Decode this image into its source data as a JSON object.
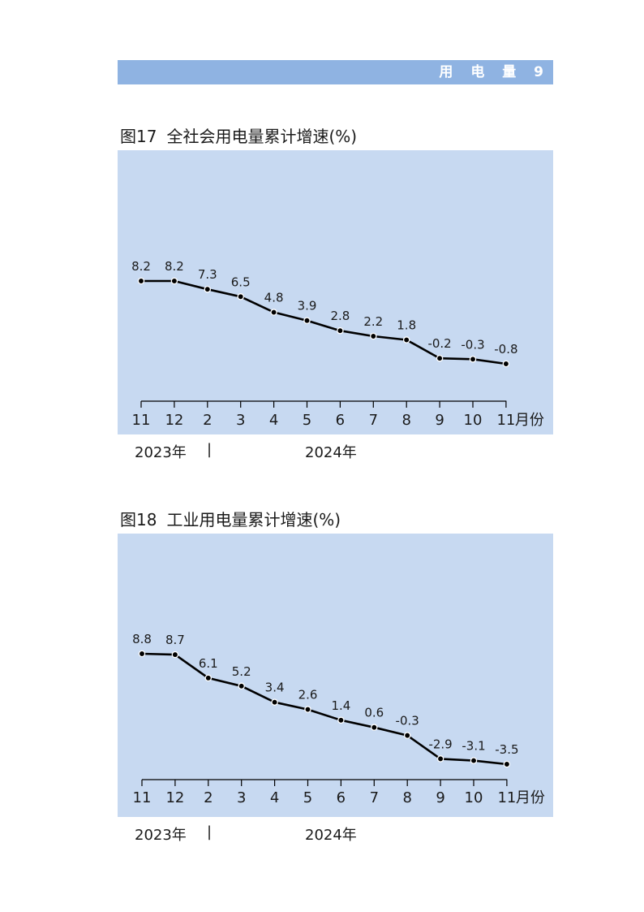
{
  "header": {
    "label": "用 电 量 9"
  },
  "figures": [
    {
      "fig_num": "图17",
      "fig_title": "全社会用电量累计增速(%)",
      "year_left": "2023年",
      "separator": "|",
      "year_right": "2024年"
    },
    {
      "fig_num": "图18",
      "fig_title": "工业用电量累计增速(%)",
      "year_left": "2023年",
      "separator": "|",
      "year_right": "2024年"
    }
  ],
  "chart_data": [
    {
      "type": "line",
      "title": "全社会用电量累计增速(%)",
      "categories": [
        "11",
        "12",
        "2",
        "3",
        "4",
        "5",
        "6",
        "7",
        "8",
        "9",
        "10",
        "11"
      ],
      "x_unit": "月份",
      "values": [
        8.2,
        8.2,
        7.3,
        6.5,
        4.8,
        3.9,
        2.8,
        2.2,
        1.8,
        -0.2,
        -0.3,
        -0.8
      ],
      "data_labels": [
        "8.2",
        "8.2",
        "7.3",
        "6.5",
        "4.8",
        "3.9",
        "2.8",
        "2.2",
        "1.8",
        "-0.2",
        "-0.3",
        "-0.8"
      ],
      "ylim": [
        -5,
        12
      ],
      "grid": false,
      "line_color": "#000000",
      "background": "#c7d9f1"
    },
    {
      "type": "line",
      "title": "工业用电量累计增速(%)",
      "categories": [
        "11",
        "12",
        "2",
        "3",
        "4",
        "5",
        "6",
        "7",
        "8",
        "9",
        "10",
        "11"
      ],
      "x_unit": "月份",
      "values": [
        8.8,
        8.7,
        6.1,
        5.2,
        3.4,
        2.6,
        1.4,
        0.6,
        -0.3,
        -2.9,
        -3.1,
        -3.5
      ],
      "data_labels": [
        "8.8",
        "8.7",
        "6.1",
        "5.2",
        "3.4",
        "2.6",
        "1.4",
        "0.6",
        "-0.3",
        "-2.9",
        "-3.1",
        "-3.5"
      ],
      "ylim": [
        -5.8,
        13.8
      ],
      "grid": false,
      "line_color": "#000000",
      "background": "#c7d9f1"
    }
  ]
}
